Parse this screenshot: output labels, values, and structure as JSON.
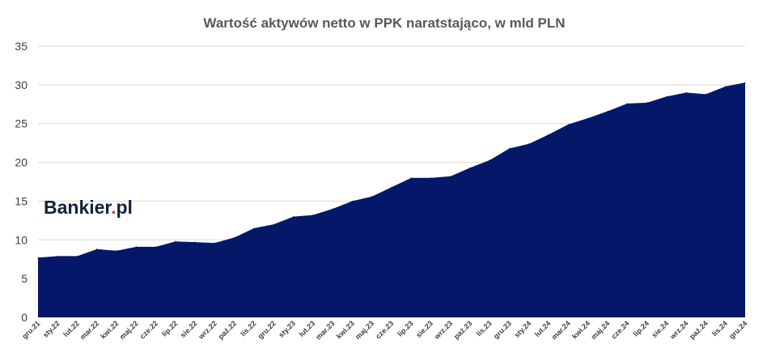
{
  "chart_data": {
    "type": "area",
    "title": "Wartość aktywów netto w PPK naratstająco, w mld PLN",
    "xlabel": "",
    "ylabel": "",
    "ylim": [
      0,
      35
    ],
    "yticks": [
      0,
      5,
      10,
      15,
      20,
      25,
      30,
      35
    ],
    "grid": true,
    "legend": "none",
    "fill_color": "#041769",
    "categories": [
      "gru.21",
      "sty.22",
      "lut.22",
      "mar.22",
      "kwi.22",
      "maj.22",
      "cze.22",
      "lip.22",
      "sie.22",
      "wrz.22",
      "paź.22",
      "lis.22",
      "gru.22",
      "sty.23",
      "lut.23",
      "mar.23",
      "kwi.23",
      "maj.23",
      "cze.23",
      "lip.23",
      "sie.23",
      "wrz.23",
      "paź.23",
      "lis.23",
      "gru.23",
      "sty.24",
      "lut.24",
      "mar.24",
      "kwi.24",
      "maj.24",
      "cze.24",
      "lip.24",
      "sie.24",
      "wrz.24",
      "paź.24",
      "lis.24",
      "gru.24"
    ],
    "values": [
      7.7,
      7.9,
      7.9,
      8.8,
      8.6,
      9.1,
      9.1,
      9.8,
      9.7,
      9.6,
      10.3,
      11.5,
      12.0,
      13.0,
      13.2,
      14.0,
      15.0,
      15.6,
      16.8,
      18.0,
      18.0,
      18.2,
      19.3,
      20.3,
      21.8,
      22.4,
      23.6,
      24.9,
      25.7,
      26.6,
      27.6,
      27.7,
      28.5,
      29.0,
      28.8,
      29.8,
      30.3
    ]
  },
  "logo": {
    "name": "Bankier",
    "dot": ".",
    "tld": "pl"
  }
}
